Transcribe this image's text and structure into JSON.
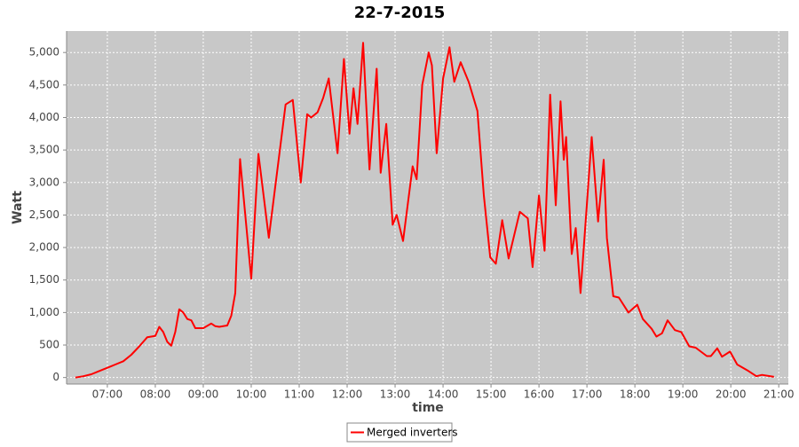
{
  "chart_data": {
    "type": "line",
    "title": "22-7-2015",
    "xlabel": "time",
    "ylabel": "Watt",
    "xlim": [
      "06:09",
      "21:12"
    ],
    "xticks": [
      "07:00",
      "08:00",
      "09:00",
      "10:00",
      "11:00",
      "12:00",
      "13:00",
      "14:00",
      "15:00",
      "16:00",
      "17:00",
      "18:00",
      "19:00",
      "20:00",
      "21:00"
    ],
    "ylim": [
      -100,
      5330
    ],
    "yticks": [
      0,
      500,
      {
        "value": 1000,
        "label": "1,000"
      },
      {
        "value": 1500,
        "label": "1,500"
      },
      {
        "value": 2000,
        "label": "2,000"
      },
      {
        "value": 2500,
        "label": "2,500"
      },
      {
        "value": 3000,
        "label": "3,000"
      },
      {
        "value": 3500,
        "label": "3,500"
      },
      {
        "value": 4000,
        "label": "4,000"
      },
      {
        "value": 4500,
        "label": "4,500"
      },
      {
        "value": 5000,
        "label": "5,000"
      }
    ],
    "grid": true,
    "legend": "bottom",
    "x": [
      "06:20",
      "06:30",
      "06:40",
      "06:50",
      "07:00",
      "07:10",
      "07:20",
      "07:30",
      "07:40",
      "07:50",
      "08:00",
      "08:05",
      "08:10",
      "08:15",
      "08:20",
      "08:25",
      "08:30",
      "08:35",
      "08:40",
      "08:45",
      "08:50",
      "09:00",
      "09:10",
      "09:15",
      "09:20",
      "09:30",
      "09:35",
      "09:40",
      "09:46",
      "10:00",
      "10:09",
      "10:22",
      "10:43",
      "10:52",
      "11:02",
      "11:10",
      "11:15",
      "11:23",
      "11:30",
      "11:37",
      "11:48",
      "11:56",
      "12:03",
      "12:08",
      "12:13",
      "12:20",
      "12:28",
      "12:37",
      "12:42",
      "12:49",
      "12:57",
      "13:02",
      "13:10",
      "13:22",
      "13:27",
      "13:34",
      "13:42",
      "13:46",
      "13:52",
      "14:00",
      "14:08",
      "14:14",
      "14:22",
      "14:32",
      "14:43",
      "14:51",
      "14:59",
      "15:06",
      "15:14",
      "15:22",
      "15:36",
      "15:46",
      "15:52",
      "16:00",
      "16:07",
      "16:14",
      "16:21",
      "16:27",
      "16:31",
      "16:34",
      "16:41",
      "16:46",
      "16:52",
      "16:59",
      "17:06",
      "17:14",
      "17:21",
      "17:25",
      "17:33",
      "17:40",
      "17:52",
      "18:03",
      "18:10",
      "18:21",
      "18:27",
      "18:34",
      "18:41",
      "18:50",
      "18:58",
      "19:08",
      "19:16",
      "19:30",
      "19:35",
      "19:43",
      "19:49",
      "19:59",
      "20:08",
      "20:22",
      "20:32",
      "20:39",
      "20:54"
    ],
    "series": [
      {
        "name": "Merged inverters",
        "color": "#ff0000",
        "values": [
          0,
          20,
          50,
          100,
          150,
          200,
          250,
          350,
          480,
          620,
          640,
          780,
          700,
          550,
          490,
          700,
          1050,
          1000,
          900,
          880,
          760,
          760,
          830,
          790,
          780,
          800,
          950,
          1300,
          3360,
          1520,
          3440,
          2150,
          4200,
          4270,
          3000,
          4050,
          4000,
          4080,
          4300,
          4600,
          3450,
          4900,
          3750,
          4450,
          3900,
          5150,
          3200,
          4750,
          3150,
          3900,
          2350,
          2500,
          2100,
          3250,
          3050,
          4500,
          5000,
          4800,
          3450,
          4600,
          5080,
          4550,
          4850,
          4550,
          4100,
          2800,
          1850,
          1750,
          2420,
          1830,
          2550,
          2450,
          1700,
          2800,
          1950,
          4350,
          2650,
          4250,
          3350,
          3700,
          1900,
          2300,
          1300,
          2500,
          3700,
          2400,
          3350,
          2150,
          1250,
          1230,
          1000,
          1120,
          900,
          750,
          630,
          680,
          880,
          730,
          700,
          480,
          460,
          330,
          330,
          450,
          320,
          400,
          200,
          100,
          20,
          40,
          10
        ]
      }
    ]
  }
}
